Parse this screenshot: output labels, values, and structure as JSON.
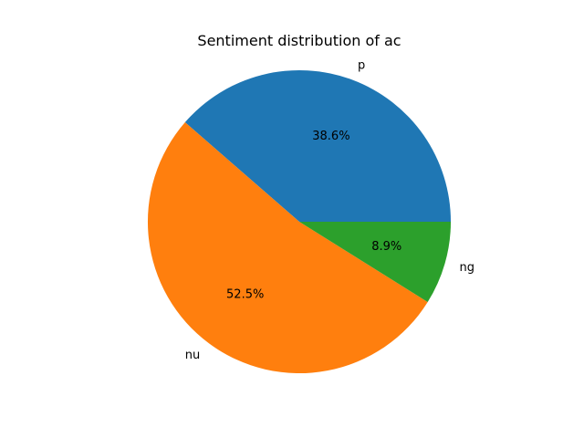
{
  "chart_data": {
    "type": "pie",
    "title": "Sentiment distribution of ac",
    "labels": [
      "p",
      "nu",
      "ng"
    ],
    "values": [
      38.6,
      52.5,
      8.9
    ],
    "value_labels": [
      "38.6%",
      "52.5%",
      "8.9%"
    ],
    "colors": [
      "#1f77b4",
      "#ff7f0e",
      "#2ca02c"
    ],
    "start_angle": 0,
    "direction": "counterclockwise",
    "legend": "none"
  }
}
